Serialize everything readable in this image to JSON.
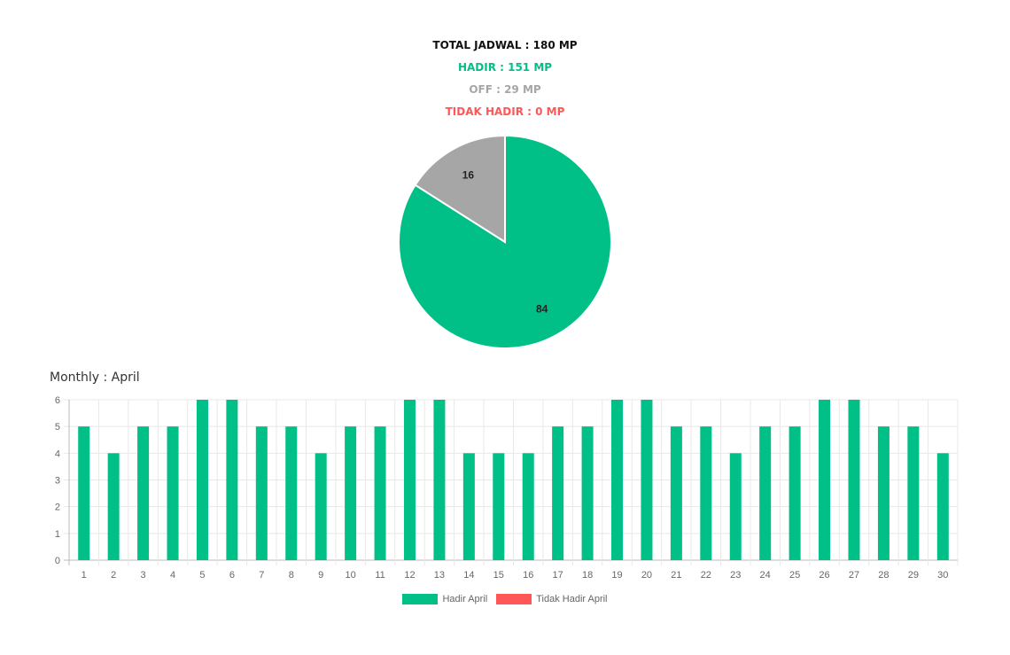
{
  "summary": {
    "total": "TOTAL JADWAL : 180 MP",
    "hadir": "HADIR : 151 MP",
    "off": "OFF : 29 MP",
    "tidak_hadir": "TIDAK HADIR : 0 MP"
  },
  "colors": {
    "hadir": "#00bf87",
    "off": "#a6a6a6",
    "tidak_hadir": "#ff5757"
  },
  "chart_data": [
    {
      "type": "pie",
      "title": "",
      "slices": [
        {
          "label": "HADIR",
          "value": 84,
          "color": "#00bf87"
        },
        {
          "label": "OFF",
          "value": 16,
          "color": "#a6a6a6"
        }
      ]
    },
    {
      "type": "bar",
      "title": "Monthly : April",
      "categories": [
        "1",
        "2",
        "3",
        "4",
        "5",
        "6",
        "7",
        "8",
        "9",
        "10",
        "11",
        "12",
        "13",
        "14",
        "15",
        "16",
        "17",
        "18",
        "19",
        "20",
        "21",
        "22",
        "23",
        "24",
        "25",
        "26",
        "27",
        "28",
        "29",
        "30"
      ],
      "series": [
        {
          "name": "Hadir April",
          "color": "#00bf87",
          "values": [
            5,
            4,
            5,
            5,
            6,
            6,
            5,
            5,
            4,
            5,
            5,
            6,
            6,
            4,
            4,
            4,
            5,
            5,
            6,
            6,
            5,
            5,
            4,
            5,
            5,
            6,
            6,
            5,
            5,
            4
          ]
        },
        {
          "name": "Tidak Hadir April",
          "color": "#ff5757",
          "values": [
            0,
            0,
            0,
            0,
            0,
            0,
            0,
            0,
            0,
            0,
            0,
            0,
            0,
            0,
            0,
            0,
            0,
            0,
            0,
            0,
            0,
            0,
            0,
            0,
            0,
            0,
            0,
            0,
            0,
            0
          ]
        }
      ],
      "yticks": [
        "0",
        "1",
        "2",
        "3",
        "4",
        "5",
        "6"
      ],
      "ylim": [
        0,
        6
      ],
      "grid": true,
      "legend": "bottom"
    }
  ]
}
